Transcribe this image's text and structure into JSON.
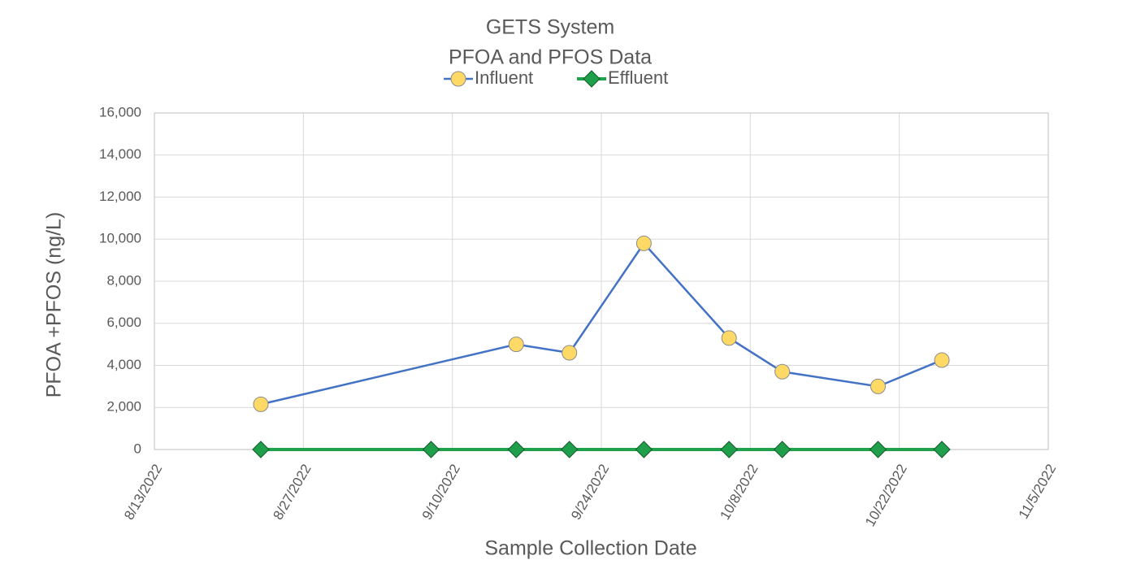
{
  "chart_data": {
    "type": "line",
    "title": "GETS System",
    "subtitle": "PFOA and PFOS Data",
    "y_label": "PFOA +PFOS (ng/L)",
    "x_label": "Sample Collection Date",
    "series": [
      {
        "name": "Influent",
        "color": "#4472c4",
        "marker": "circle",
        "marker_color": "#ffd966",
        "x": [
          "8/23/2022",
          "9/16/2022",
          "9/21/2022",
          "9/28/2022",
          "10/6/2022",
          "10/11/2022",
          "10/20/2022",
          "10/26/2022"
        ],
        "values": [
          2150,
          5000,
          4600,
          9800,
          5300,
          3700,
          3000,
          4250
        ]
      },
      {
        "name": "Effluent",
        "color": "#1fa34a",
        "marker": "diamond",
        "marker_color": "#1f9e4b",
        "x": [
          "8/23/2022",
          "9/8/2022",
          "9/16/2022",
          "9/21/2022",
          "9/28/2022",
          "10/6/2022",
          "10/11/2022",
          "10/20/2022",
          "10/26/2022"
        ],
        "values": [
          0,
          0,
          0,
          0,
          0,
          0,
          0,
          0,
          0
        ]
      }
    ],
    "xlim": [
      "8/13/2022",
      "11/5/2022"
    ],
    "xticks": [
      "8/13/2022",
      "8/27/2022",
      "9/10/2022",
      "9/24/2022",
      "10/8/2022",
      "10/22/2022",
      "11/5/2022"
    ],
    "ylim": [
      0,
      16000
    ],
    "yticks": [
      0,
      {
        "value": 2000,
        "label": "2,000"
      },
      {
        "value": 4000,
        "label": "4,000"
      },
      {
        "value": 6000,
        "label": "6,000"
      },
      {
        "value": 8000,
        "label": "8,000"
      },
      {
        "value": 10000,
        "label": "10,000"
      },
      {
        "value": 12000,
        "label": "12,000"
      },
      {
        "value": 14000,
        "label": "14,000"
      },
      {
        "value": 16000,
        "label": "16,000"
      }
    ],
    "grid": true,
    "legend": "top"
  }
}
